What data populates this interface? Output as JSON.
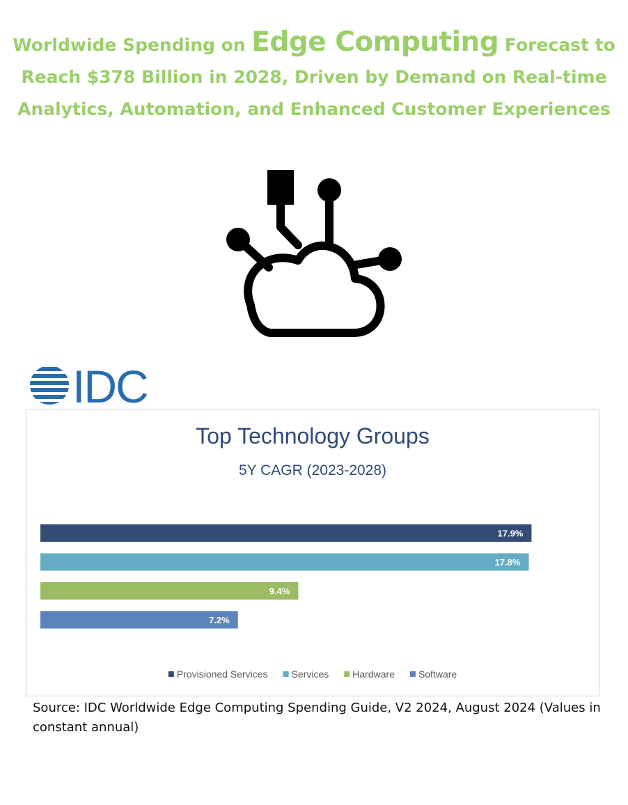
{
  "headline": {
    "part1": "Worldwide Spending on ",
    "highlight": "Edge Computing",
    "part2": " Forecast to Reach $378 Billion in 2028, Driven by Demand on Real-time Analytics, Automation, and Enhanced Customer Experiences",
    "color": "#9bcf6a"
  },
  "icon": {
    "name": "edge-computing-cloud-icon"
  },
  "logo": {
    "text": "IDC",
    "color": "#2b6cb0"
  },
  "chart_data": {
    "type": "bar",
    "orientation": "horizontal",
    "title": "Top Technology Groups",
    "subtitle": "5Y CAGR (2023-2028)",
    "categories": [
      "Provisioned Services",
      "Services",
      "Hardware",
      "Software"
    ],
    "values": [
      17.9,
      17.8,
      9.4,
      7.2
    ],
    "data_labels": [
      "17.9%",
      "17.8%",
      "9.4%",
      "7.2%"
    ],
    "unit": "%",
    "xlim": [
      0,
      20.3
    ],
    "colors": [
      "#344c74",
      "#64acc4",
      "#9cbc64",
      "#5c84bc"
    ],
    "legend_position": "bottom",
    "grid": false
  },
  "source": "Source: IDC Worldwide Edge Computing Spending Guide, V2 2024, August 2024 (Values in constant annual)"
}
